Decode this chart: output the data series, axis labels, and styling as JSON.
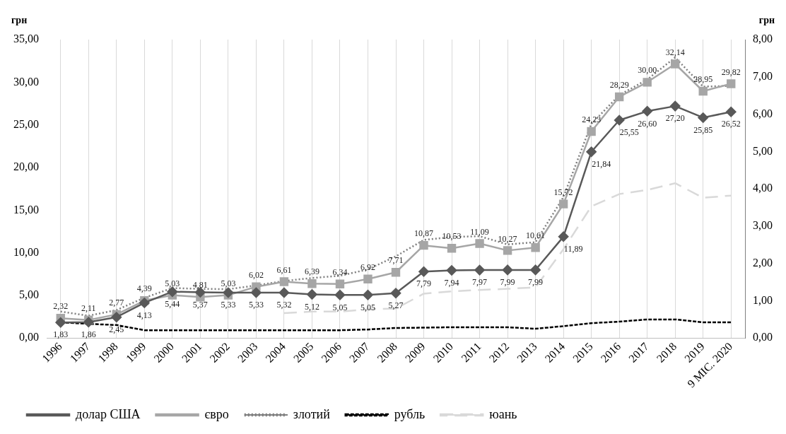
{
  "chart_data": {
    "type": "line",
    "ylabel": "грн",
    "y2label": "грн",
    "categories": [
      "1996",
      "1997",
      "1998",
      "1999",
      "2000",
      "2001",
      "2002",
      "2003",
      "2004",
      "2005",
      "2006",
      "2007",
      "2008",
      "2009",
      "2010",
      "2011",
      "2012",
      "2013",
      "2014",
      "2015",
      "2016",
      "2017",
      "2018",
      "2019",
      "9 МІС. 2020"
    ],
    "series": [
      {
        "name": "долар США",
        "color": "#595959",
        "marker": "diamond",
        "line_style": "solid",
        "values": [
          1.83,
          1.86,
          2.45,
          4.13,
          5.44,
          5.37,
          5.33,
          5.33,
          5.32,
          5.12,
          5.05,
          5.05,
          5.27,
          7.79,
          7.94,
          7.97,
          7.99,
          7.99,
          11.89,
          21.84,
          25.55,
          26.6,
          27.2,
          25.85,
          26.52
        ],
        "value_labels": [
          "1,83",
          "1,86",
          "2,45",
          "4,13",
          "5,44",
          "5,37",
          "5,33",
          "5,33",
          "5,32",
          "5,12",
          "5,05",
          "5,05",
          "5,27",
          "7,79",
          "7,94",
          "7,97",
          "7,99",
          "7,99",
          "11,89",
          "21,84",
          "25,55",
          "26,60",
          "27,20",
          "25,85",
          "26,52"
        ]
      },
      {
        "name": "євро",
        "color": "#a6a6a6",
        "marker": "square",
        "line_style": "solid",
        "values": [
          2.32,
          2.11,
          2.77,
          4.39,
          5.03,
          4.81,
          5.03,
          6.02,
          6.61,
          6.39,
          6.34,
          6.92,
          7.71,
          10.87,
          10.53,
          11.09,
          10.27,
          10.61,
          15.72,
          24.23,
          28.29,
          30.0,
          32.14,
          28.95,
          29.82
        ],
        "value_labels": [
          "2,32",
          "2,11",
          "2,77",
          "4,39",
          "5,03",
          "4,81",
          "5,03",
          "6,02",
          "6,61",
          "6,39",
          "6,34",
          "6,92",
          "7,71",
          "10,87",
          "10,53",
          "11,09",
          "10,27",
          "10,61",
          "15,72",
          "24,23",
          "28,29",
          "30,00",
          "32,14",
          "28,95",
          "29,82"
        ]
      },
      {
        "name": "злотий",
        "color": "#7f7f7f",
        "marker": "none",
        "line_style": "dotted",
        "axis": "y2",
        "values": [
          0.71,
          0.6,
          0.75,
          1.08,
          1.34,
          1.32,
          1.31,
          1.41,
          1.53,
          1.61,
          1.67,
          1.84,
          2.19,
          2.63,
          2.71,
          2.73,
          2.51,
          2.57,
          3.78,
          5.74,
          6.51,
          6.93,
          7.52,
          6.74,
          6.76
        ]
      },
      {
        "name": "рубль",
        "color": "#000000",
        "marker": "none",
        "line_style": "dashed",
        "axis": "y2",
        "values": [
          0.42,
          0.38,
          0.35,
          0.21,
          0.21,
          0.21,
          0.21,
          0.21,
          0.21,
          0.21,
          0.21,
          0.23,
          0.27,
          0.28,
          0.29,
          0.29,
          0.29,
          0.25,
          0.32,
          0.4,
          0.44,
          0.5,
          0.5,
          0.42,
          0.42
        ]
      },
      {
        "name": "юань",
        "color": "#d9d9d9",
        "marker": "none",
        "line_style": "long-dashed",
        "axis": "y2",
        "values": [
          null,
          null,
          null,
          null,
          null,
          null,
          null,
          null,
          0.67,
          0.71,
          0.71,
          0.77,
          0.79,
          1.19,
          1.25,
          1.29,
          1.32,
          1.36,
          2.38,
          3.53,
          3.86,
          3.97,
          4.15,
          3.76,
          3.82
        ]
      }
    ],
    "ylim": [
      0,
      35
    ],
    "yticks": [
      {
        "value": 0,
        "label": "0,00"
      },
      {
        "value": 5,
        "label": "5,00"
      },
      {
        "value": 10,
        "label": "10,00"
      },
      {
        "value": 15,
        "label": "15,00"
      },
      {
        "value": 20,
        "label": "20,00"
      },
      {
        "value": 25,
        "label": "25,00"
      },
      {
        "value": 30,
        "label": "30,00"
      },
      {
        "value": 35,
        "label": "35,00"
      }
    ],
    "y2lim": [
      0,
      8
    ],
    "y2ticks": [
      {
        "value": 0,
        "label": "0,00"
      },
      {
        "value": 1,
        "label": "1,00"
      },
      {
        "value": 2,
        "label": "2,00"
      },
      {
        "value": 3,
        "label": "3,00"
      },
      {
        "value": 4,
        "label": "4,00"
      },
      {
        "value": 5,
        "label": "5,00"
      },
      {
        "value": 6,
        "label": "6,00"
      },
      {
        "value": 7,
        "label": "7,00"
      },
      {
        "value": 8,
        "label": "8,00"
      }
    ],
    "grid": "x",
    "legend": "bottom"
  }
}
